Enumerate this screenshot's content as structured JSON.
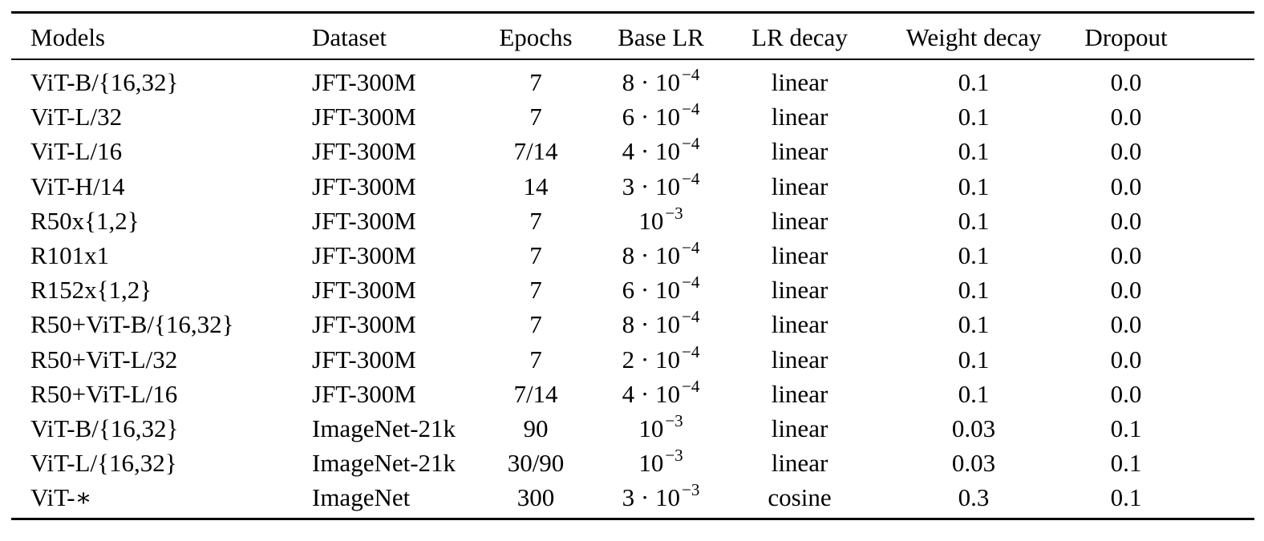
{
  "table": {
    "headers": {
      "models": "Models",
      "dataset": "Dataset",
      "epochs": "Epochs",
      "base_lr": "Base LR",
      "lr_decay": "LR decay",
      "weight_decay": "Weight decay",
      "dropout": "Dropout"
    },
    "rows": [
      {
        "model": "ViT-B/{16,32}",
        "dataset": "JFT-300M",
        "epochs": "7",
        "lr_base": "8 · 10",
        "lr_exp": "−4",
        "decay": "linear",
        "wd": "0.1",
        "dropout": "0.0"
      },
      {
        "model": "ViT-L/32",
        "dataset": "JFT-300M",
        "epochs": "7",
        "lr_base": "6 · 10",
        "lr_exp": "−4",
        "decay": "linear",
        "wd": "0.1",
        "dropout": "0.0"
      },
      {
        "model": "ViT-L/16",
        "dataset": "JFT-300M",
        "epochs": "7/14",
        "lr_base": "4 · 10",
        "lr_exp": "−4",
        "decay": "linear",
        "wd": "0.1",
        "dropout": "0.0"
      },
      {
        "model": "ViT-H/14",
        "dataset": "JFT-300M",
        "epochs": "14",
        "lr_base": "3 · 10",
        "lr_exp": "−4",
        "decay": "linear",
        "wd": "0.1",
        "dropout": "0.0"
      },
      {
        "model": "R50x{1,2}",
        "dataset": "JFT-300M",
        "epochs": "7",
        "lr_base": "10",
        "lr_exp": "−3",
        "decay": "linear",
        "wd": "0.1",
        "dropout": "0.0"
      },
      {
        "model": "R101x1",
        "dataset": "JFT-300M",
        "epochs": "7",
        "lr_base": "8 · 10",
        "lr_exp": "−4",
        "decay": "linear",
        "wd": "0.1",
        "dropout": "0.0"
      },
      {
        "model": "R152x{1,2}",
        "dataset": "JFT-300M",
        "epochs": "7",
        "lr_base": "6 · 10",
        "lr_exp": "−4",
        "decay": "linear",
        "wd": "0.1",
        "dropout": "0.0"
      },
      {
        "model": "R50+ViT-B/{16,32}",
        "dataset": "JFT-300M",
        "epochs": "7",
        "lr_base": "8 · 10",
        "lr_exp": "−4",
        "decay": "linear",
        "wd": "0.1",
        "dropout": "0.0"
      },
      {
        "model": "R50+ViT-L/32",
        "dataset": "JFT-300M",
        "epochs": "7",
        "lr_base": "2 · 10",
        "lr_exp": "−4",
        "decay": "linear",
        "wd": "0.1",
        "dropout": "0.0"
      },
      {
        "model": "R50+ViT-L/16",
        "dataset": "JFT-300M",
        "epochs": "7/14",
        "lr_base": "4 · 10",
        "lr_exp": "−4",
        "decay": "linear",
        "wd": "0.1",
        "dropout": "0.0"
      },
      {
        "model": "ViT-B/{16,32}",
        "dataset": "ImageNet-21k",
        "epochs": "90",
        "lr_base": "10",
        "lr_exp": "−3",
        "decay": "linear",
        "wd": "0.03",
        "dropout": "0.1"
      },
      {
        "model": "ViT-L/{16,32}",
        "dataset": "ImageNet-21k",
        "epochs": "30/90",
        "lr_base": "10",
        "lr_exp": "−3",
        "decay": "linear",
        "wd": "0.03",
        "dropout": "0.1"
      },
      {
        "model": "ViT-∗",
        "dataset": "ImageNet",
        "epochs": "300",
        "lr_base": "3 · 10",
        "lr_exp": "−3",
        "decay": "cosine",
        "wd": "0.3",
        "dropout": "0.1"
      }
    ]
  }
}
